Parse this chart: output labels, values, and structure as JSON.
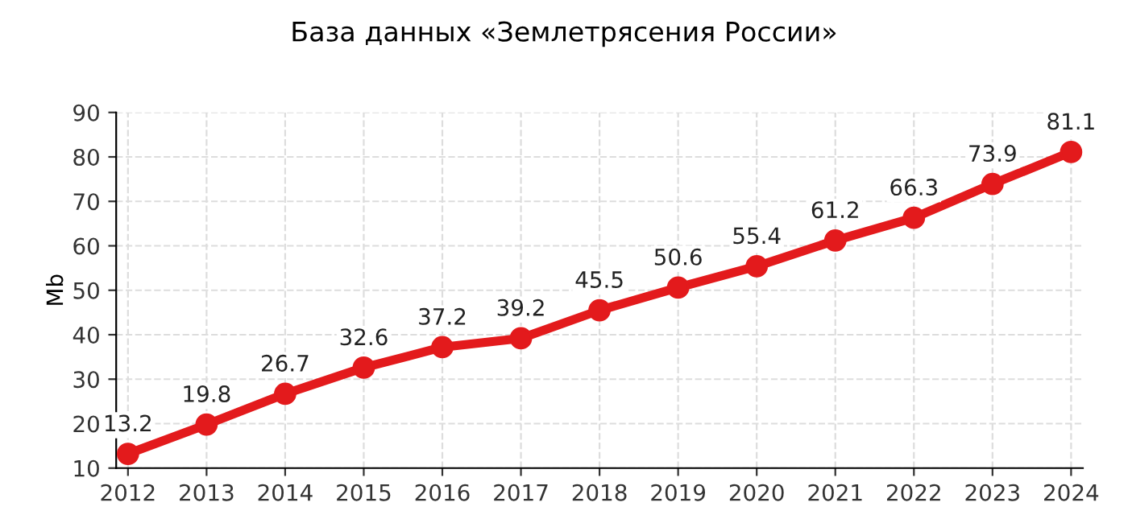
{
  "chart_data": {
    "type": "line",
    "title": "База данных «Землетрясения России»",
    "ylabel": "Mb",
    "categories": [
      "2012",
      "2013",
      "2014",
      "2015",
      "2016",
      "2017",
      "2018",
      "2019",
      "2020",
      "2021",
      "2022",
      "2023",
      "2024"
    ],
    "series": [
      {
        "color": "#e31a1c",
        "values": [
          13.2,
          19.8,
          26.7,
          32.6,
          37.2,
          39.2,
          45.5,
          50.6,
          55.4,
          61.2,
          66.3,
          73.9,
          81.1
        ]
      }
    ],
    "ylim": [
      10,
      90
    ],
    "yticks": [
      10,
      20,
      30,
      40,
      50,
      60,
      70,
      80,
      90
    ],
    "grid": true,
    "marker": "circle",
    "line_style": "solid",
    "data_labels": true
  }
}
